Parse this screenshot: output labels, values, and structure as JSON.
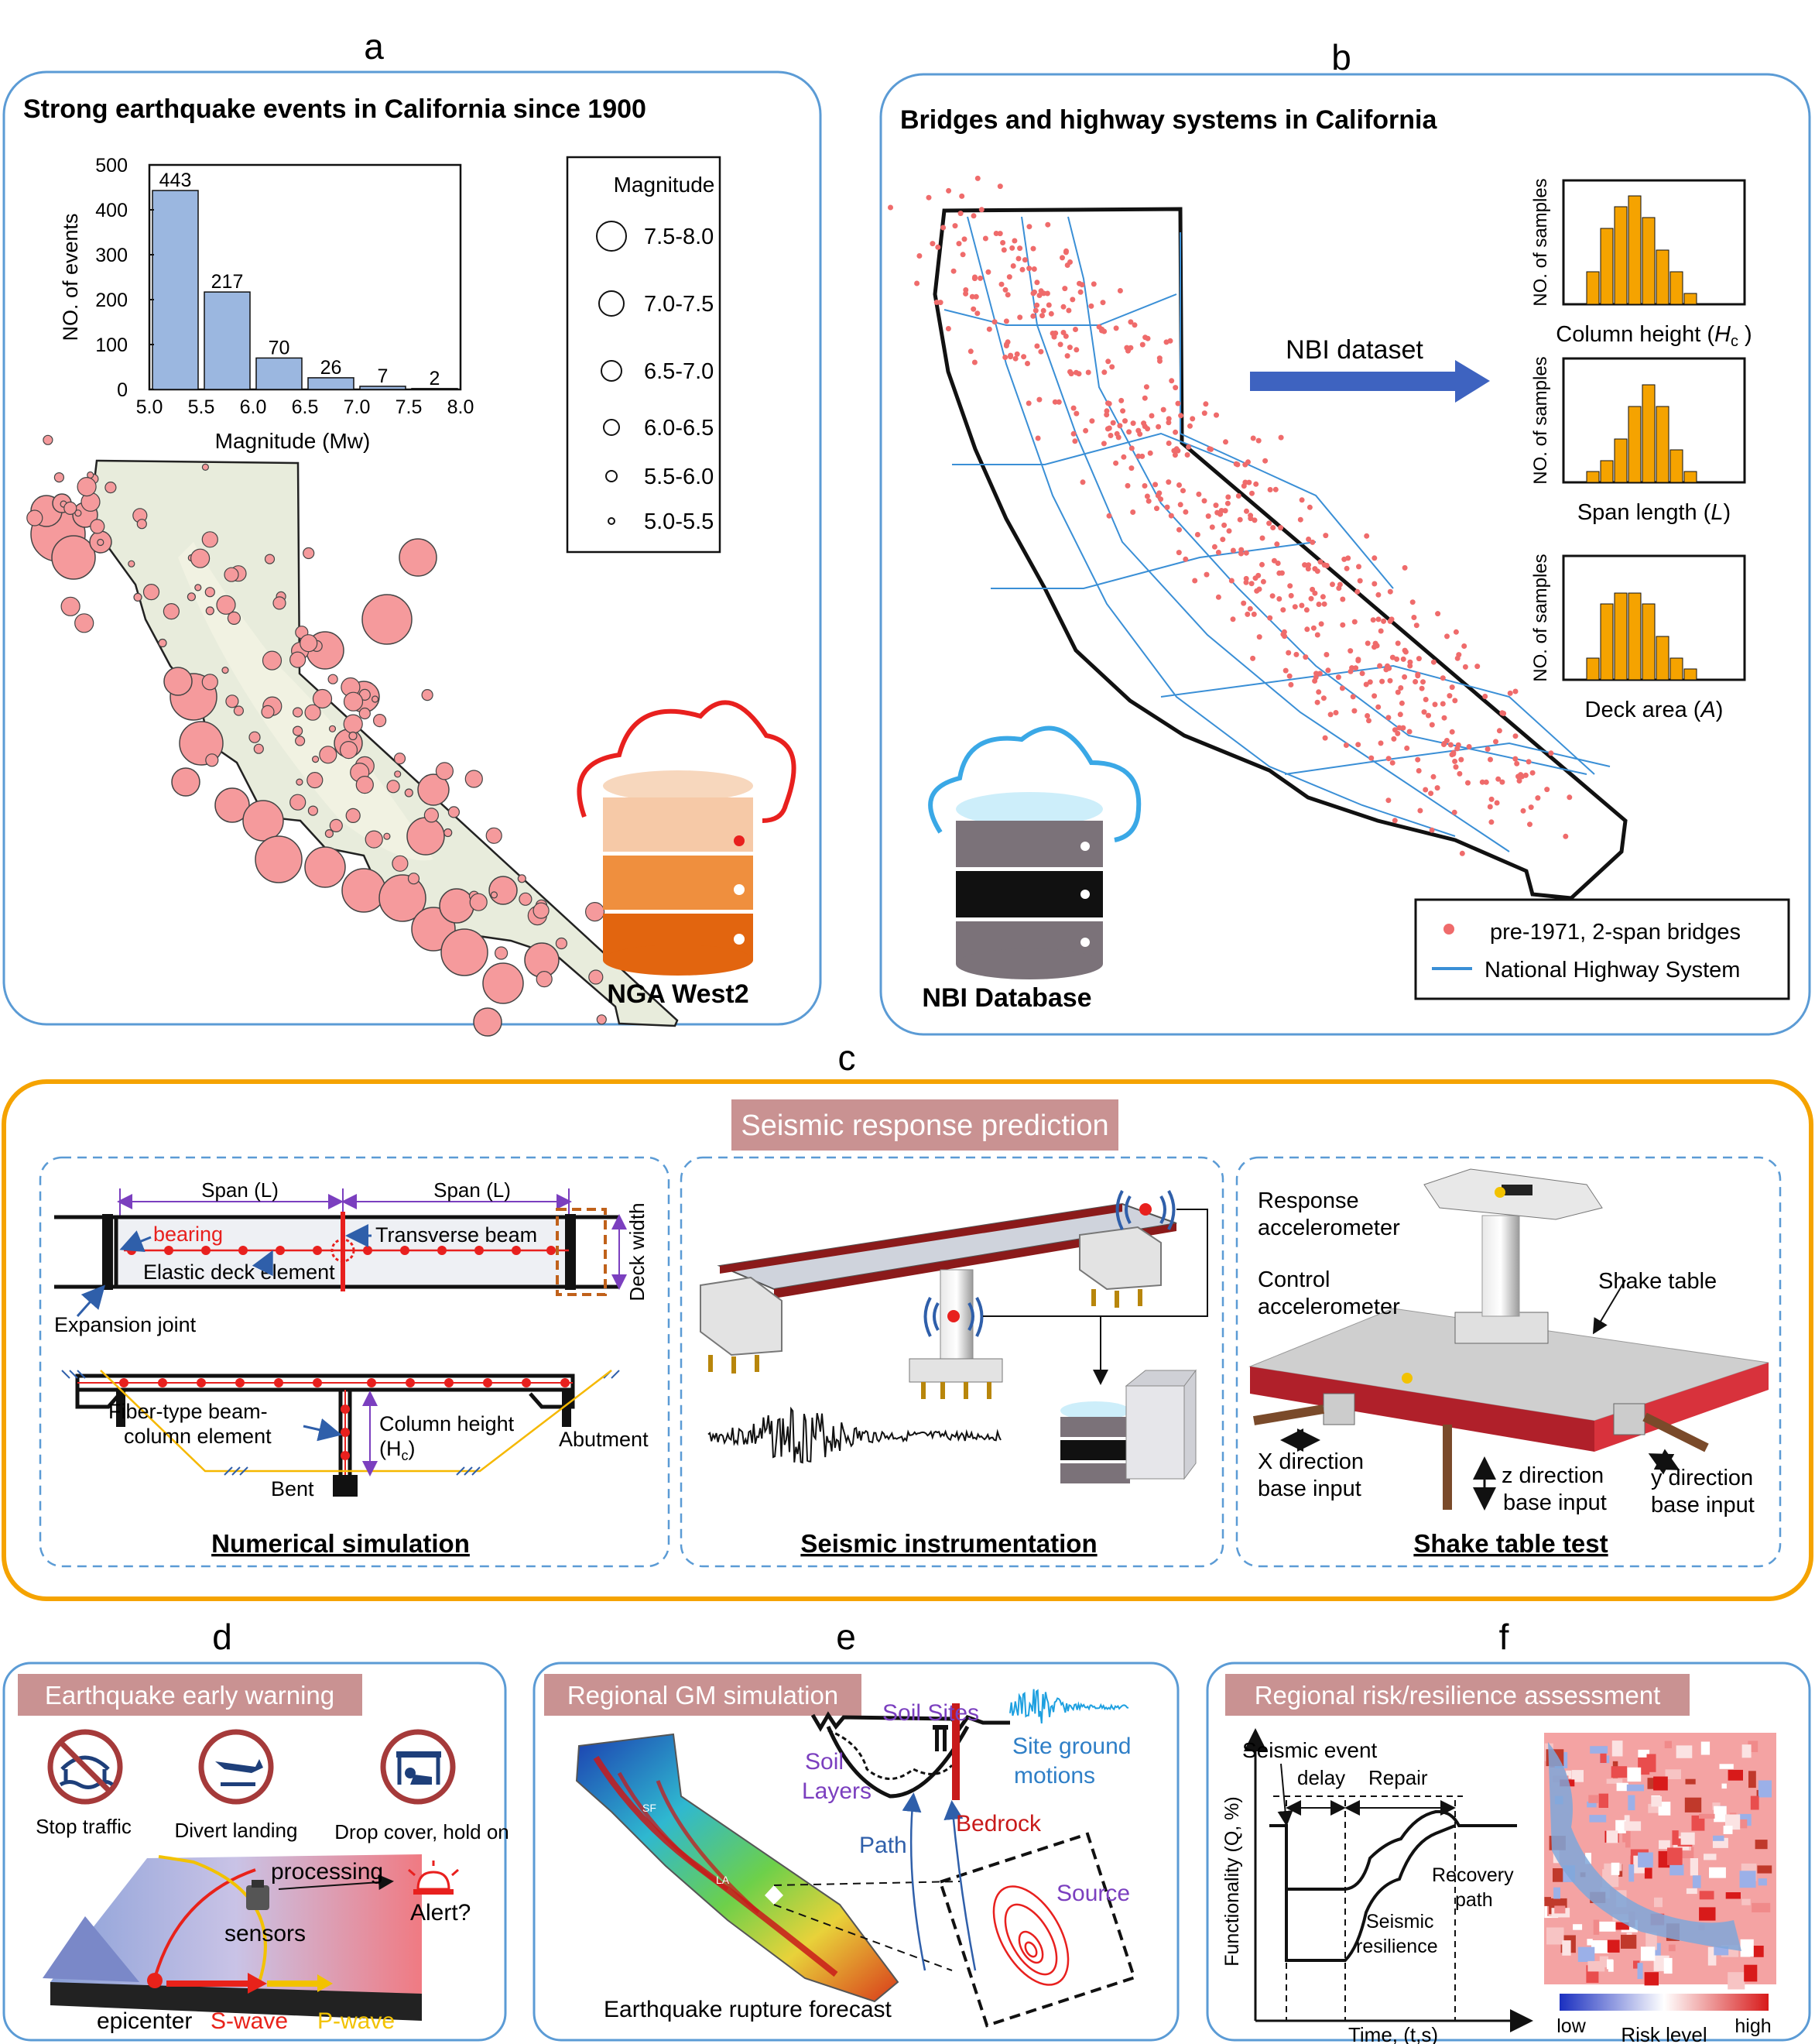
{
  "panel_letters": {
    "a": "a",
    "b": "b",
    "c": "c",
    "d": "d",
    "e": "e",
    "f": "f"
  },
  "panel_a": {
    "title": "Strong earthquake events in California since 1900",
    "legend_title": "Magnitude",
    "legend_items": [
      "7.5-8.0",
      "7.0-7.5",
      "6.5-7.0",
      "6.0-6.5",
      "5.5-6.0",
      "5.0-5.5"
    ],
    "database_label": "NGA West2"
  },
  "chart_data": {
    "type": "bar",
    "categories": [
      "5.0-5.5",
      "5.5-6.0",
      "6.0-6.5",
      "6.5-7.0",
      "7.0-7.5",
      "7.5-8.0"
    ],
    "values": [
      443,
      217,
      70,
      26,
      7,
      2
    ],
    "xlabel": "Magnitude (Mw)",
    "ylabel": "NO. of events",
    "xticks": [
      "5.0",
      "5.5",
      "6.0",
      "6.5",
      "7.0",
      "7.5",
      "8.0"
    ],
    "yticks": [
      "0",
      "100",
      "200",
      "300",
      "400",
      "500"
    ],
    "ylim": [
      0,
      500
    ],
    "xlim": [
      5.0,
      8.0
    ],
    "bar_color": "#9bb7e0"
  },
  "panel_b": {
    "title": "Bridges and highway systems in California",
    "arrow_label": "NBI dataset",
    "database_label": "NBI Database",
    "hist_ylabel": "NO. of samples",
    "hist_xlabels": [
      "Column height (",
      "H",
      "c",
      " )",
      "Span length (",
      "L",
      ")",
      "Deck area (",
      "A",
      ")"
    ],
    "hist_values": [
      [
        3,
        7,
        9,
        10,
        8,
        5,
        3,
        1
      ],
      [
        1,
        2,
        4,
        7,
        9,
        7,
        3,
        1
      ],
      [
        2,
        7,
        8,
        8,
        7,
        4,
        2,
        1
      ]
    ],
    "hist_color": "#f5a300",
    "legend": [
      "pre-1971, 2-span  bridges",
      "National Highway System"
    ],
    "bridge_color": "#ef6b6b",
    "highway_color": "#3a8fd6"
  },
  "panel_c": {
    "header": "Seismic response prediction",
    "sim": {
      "span1": "Span (L)",
      "span2": "Span (L)",
      "bearing": "bearing",
      "transverse": "Transverse beam",
      "elastic": "Elastic deck element",
      "deck_width": "Deck width",
      "expansion": "Expansion joint",
      "fiber1": "Fiber-type beam-",
      "fiber2": "column element",
      "colheight": "Column height",
      "hc": "(H",
      "hc_sub": "c",
      "hc_end": ")",
      "abutment": "Abutment",
      "bent": "Bent",
      "title": "Numerical simulation"
    },
    "instr_title": "Seismic instrumentation",
    "shake": {
      "resp1": "Response",
      "resp2": "accelerometer",
      "ctrl1": "Control",
      "ctrl2": "accelerometer",
      "table": "Shake table",
      "x1": "X direction",
      "x2": "base input",
      "z1": "z direction",
      "z2": "base input",
      "y1": "y direction",
      "y2": "base input",
      "title": "Shake table test"
    }
  },
  "panel_d": {
    "header": "Earthquake early warning",
    "icons": [
      "Stop traffic",
      "Divert landing",
      "Drop cover, hold on"
    ],
    "processing": "processing",
    "sensors": "sensors",
    "alert": "Alert?",
    "epicenter": "epicenter",
    "swave": "S-wave",
    "pwave": "P-wave",
    "swave_color": "#e8221a",
    "pwave_color": "#f2c200"
  },
  "panel_e": {
    "header": "Regional GM simulation",
    "soil_sites": "Soil Sites",
    "site_gm1": "Site ground",
    "site_gm2": "motions",
    "soil_layers1": "Soil",
    "soil_layers2": "Layers",
    "bedrock": "Bedrock",
    "path": "Path",
    "source": "Source",
    "caption": "Earthquake rupture forecast",
    "map_labels": [
      "SF",
      "LA"
    ]
  },
  "panel_f": {
    "header": "Regional risk/resilience assessment",
    "event": "Seismic event",
    "delay": "delay",
    "repair": "Repair",
    "recovery1": "Recovery",
    "recovery2": "path",
    "resil1": "Seismic",
    "resil2": "resilience",
    "ylabel": "Functionality (Q, %)",
    "xlabel": "Time, (t,s)",
    "low": "low",
    "risk": "Risk level",
    "high": "high"
  }
}
